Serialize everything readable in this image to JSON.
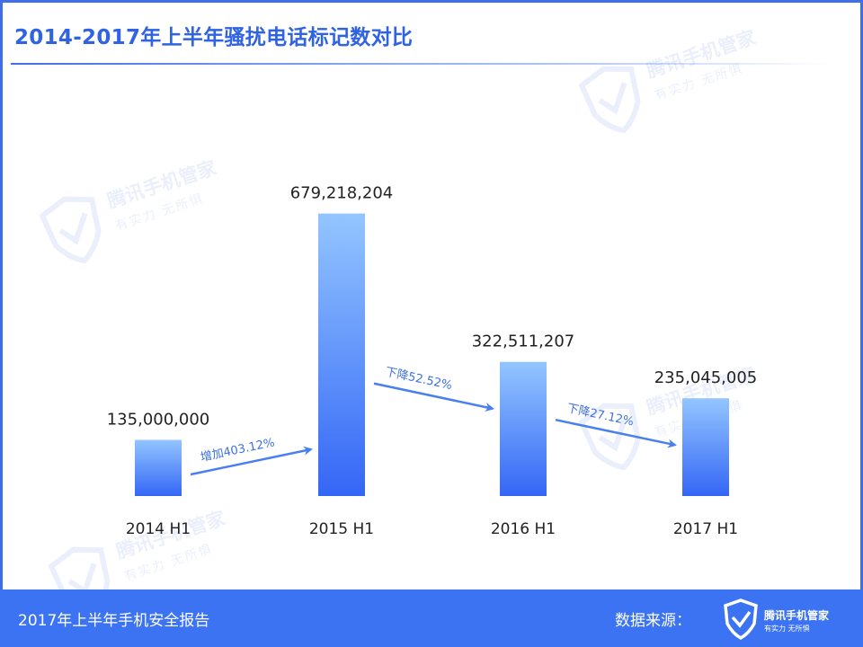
{
  "title": "2014-2017年上半年骚扰电话标记数对比",
  "footer": {
    "report_name": "2017年上半年手机安全报告",
    "source_label": "数据来源：",
    "brand": "腾讯手机管家",
    "slogan": "有实力  无所惧"
  },
  "watermark": {
    "brand": "腾讯手机管家",
    "slogan": "有实力  无所惧"
  },
  "colors": {
    "accent": "#2f63e3",
    "bar_top": "#93c5ff",
    "bar_bottom": "#3466f6",
    "arrow": "#4a7ff0",
    "footer": "#3b73f2"
  },
  "chart_data": {
    "type": "bar",
    "categories": [
      "2014 H1",
      "2015 H1",
      "2016 H1",
      "2017 H1"
    ],
    "values": [
      135000000,
      679218204,
      322511207,
      235045005
    ],
    "value_labels": [
      "135,000,000",
      "679,218,204",
      "322,511,207",
      "235,045,005"
    ],
    "ylim": [
      0,
      700000000
    ],
    "grid": false,
    "annotations": [
      {
        "text": "增加403.12%",
        "from": 0,
        "to": 1
      },
      {
        "text": "下降52.52%",
        "from": 1,
        "to": 2
      },
      {
        "text": "下降27.12%",
        "from": 2,
        "to": 3
      }
    ]
  }
}
